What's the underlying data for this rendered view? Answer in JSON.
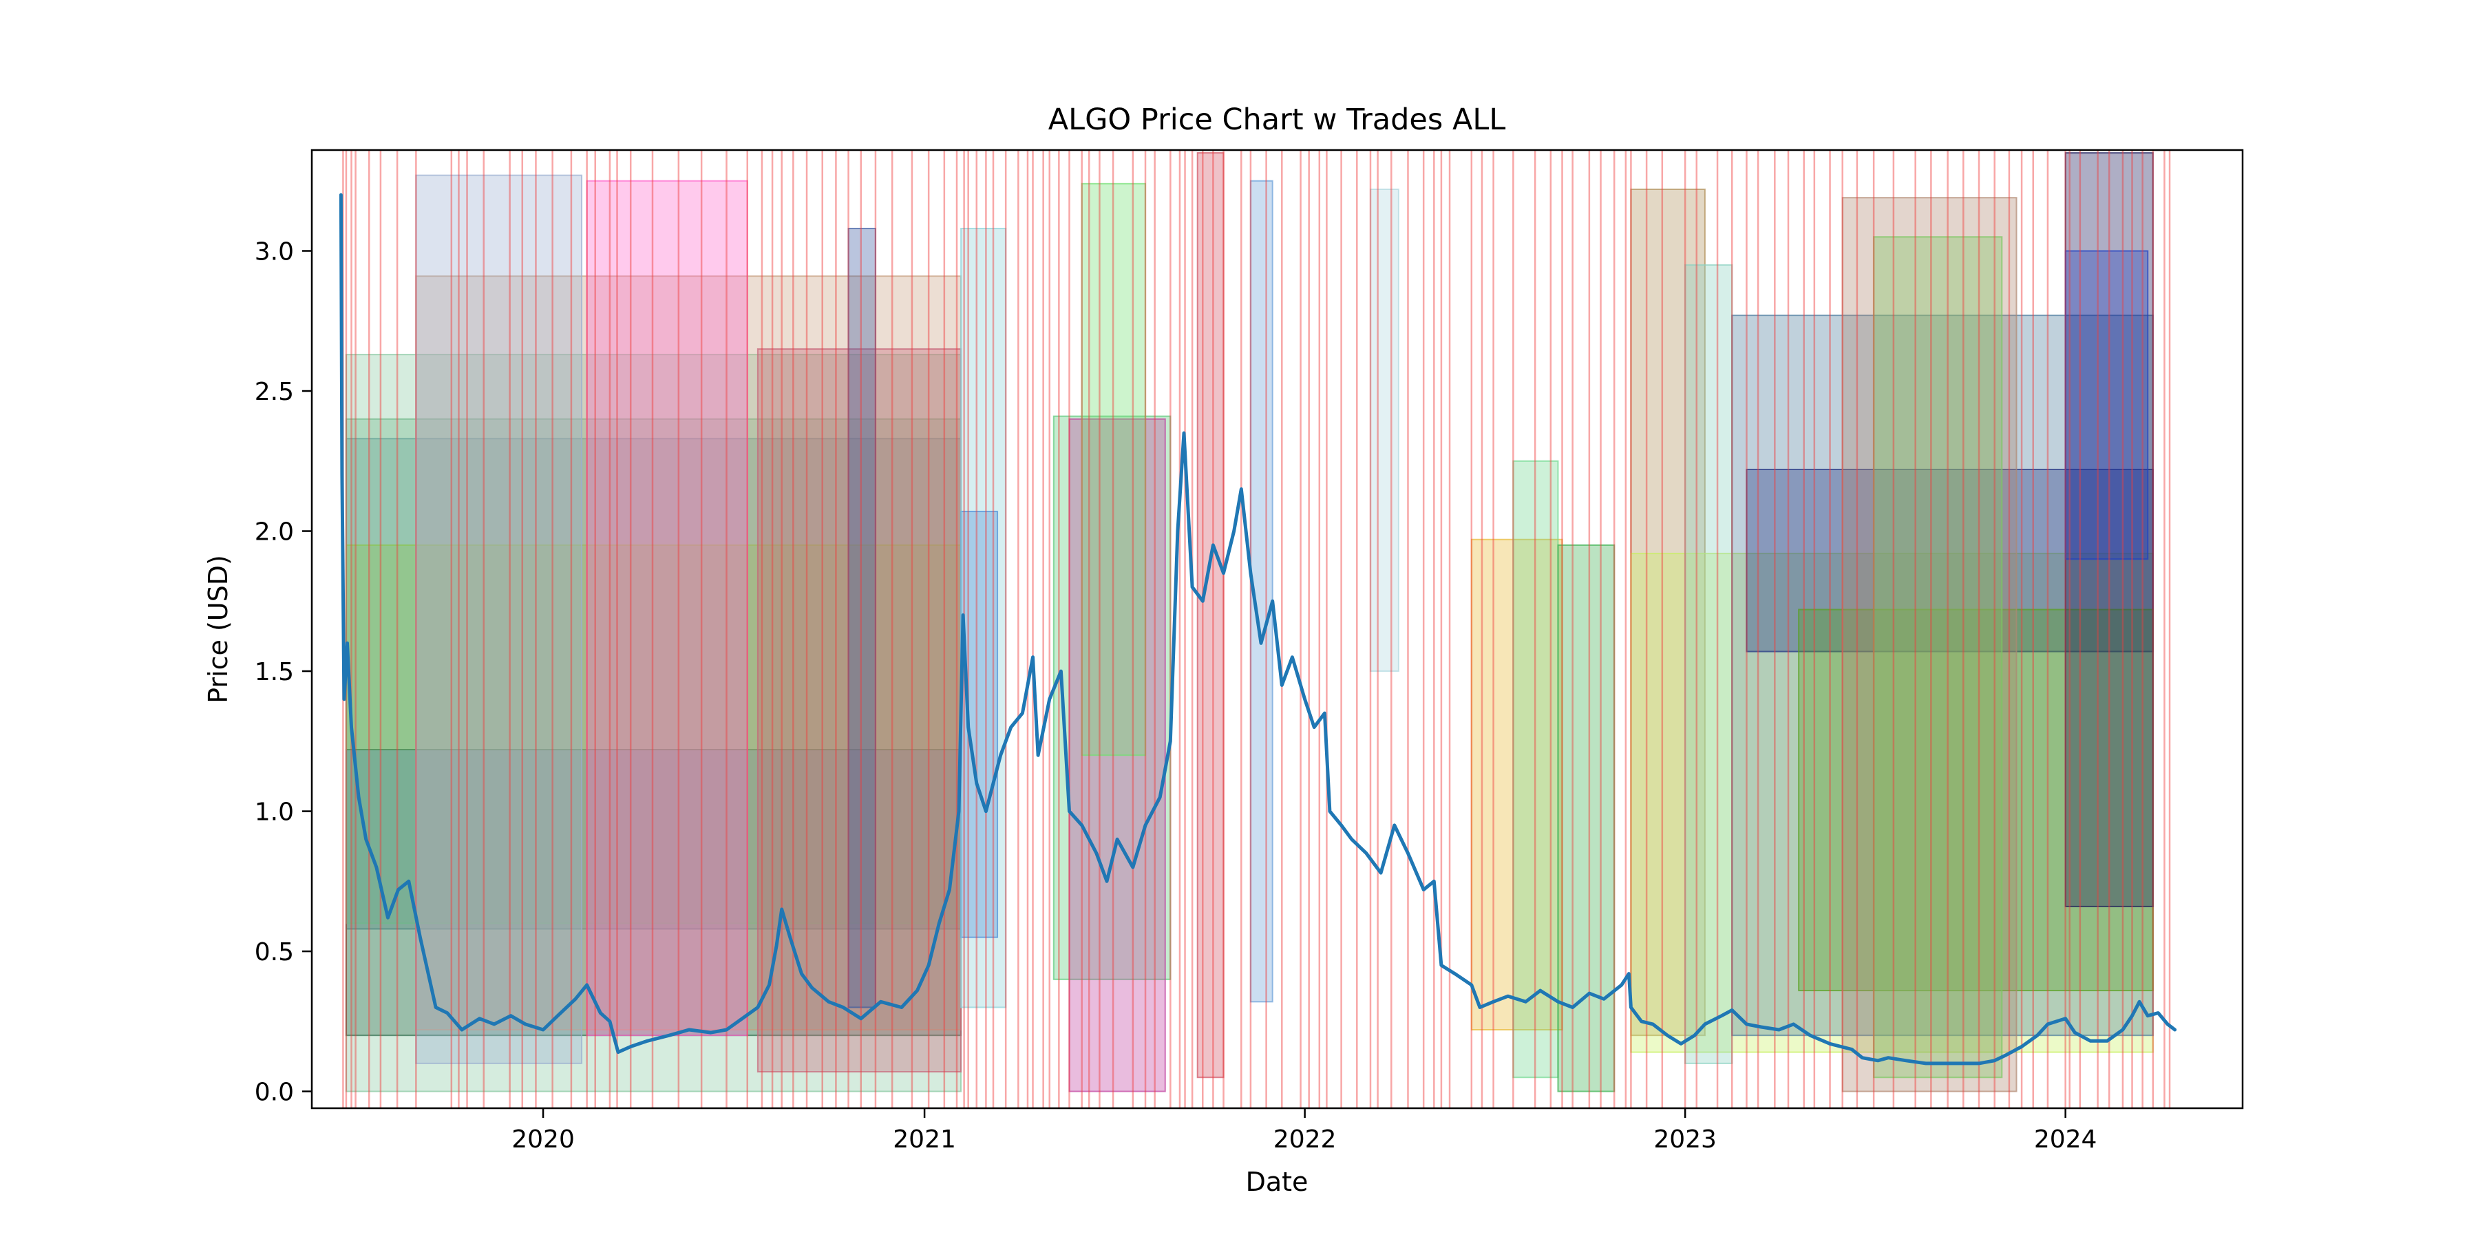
{
  "chart_data": {
    "type": "line",
    "title": "ALGO Price Chart w Trades ALL",
    "xlabel": "Date",
    "ylabel": "Price (USD)",
    "xlim": [
      "2019-05-24",
      "2024-06-19"
    ],
    "ylim": [
      -0.06,
      3.36
    ],
    "x_ticks": [
      "2020-01-01",
      "2021-01-01",
      "2022-01-01",
      "2023-01-01",
      "2024-01-01"
    ],
    "x_tick_labels": [
      "2020",
      "2021",
      "2022",
      "2023",
      "2024"
    ],
    "y_ticks": [
      0.0,
      0.5,
      1.0,
      1.5,
      2.0,
      2.5,
      3.0
    ],
    "y_tick_labels": [
      "0.0",
      "0.5",
      "1.0",
      "1.5",
      "2.0",
      "2.5",
      "3.0"
    ],
    "grid": false,
    "legend": "none",
    "line_color": "#1f77b4",
    "trade_line_color": "#f03c3c",
    "series": [
      {
        "values": [
          [
            "2019-06-21",
            3.2
          ],
          [
            "2019-06-22",
            2.2
          ],
          [
            "2019-06-24",
            1.4
          ],
          [
            "2019-06-27",
            1.6
          ],
          [
            "2019-07-01",
            1.3
          ],
          [
            "2019-07-08",
            1.05
          ],
          [
            "2019-07-15",
            0.9
          ],
          [
            "2019-07-25",
            0.8
          ],
          [
            "2019-08-05",
            0.62
          ],
          [
            "2019-08-15",
            0.72
          ],
          [
            "2019-08-25",
            0.75
          ],
          [
            "2019-09-05",
            0.55
          ],
          [
            "2019-09-20",
            0.3
          ],
          [
            "2019-10-01",
            0.28
          ],
          [
            "2019-10-15",
            0.22
          ],
          [
            "2019-11-01",
            0.26
          ],
          [
            "2019-11-15",
            0.24
          ],
          [
            "2019-12-01",
            0.27
          ],
          [
            "2019-12-15",
            0.24
          ],
          [
            "2020-01-01",
            0.22
          ],
          [
            "2020-01-15",
            0.27
          ],
          [
            "2020-02-01",
            0.33
          ],
          [
            "2020-02-12",
            0.38
          ],
          [
            "2020-02-25",
            0.28
          ],
          [
            "2020-03-05",
            0.25
          ],
          [
            "2020-03-13",
            0.14
          ],
          [
            "2020-03-25",
            0.16
          ],
          [
            "2020-04-10",
            0.18
          ],
          [
            "2020-05-01",
            0.2
          ],
          [
            "2020-05-20",
            0.22
          ],
          [
            "2020-06-10",
            0.21
          ],
          [
            "2020-06-25",
            0.22
          ],
          [
            "2020-07-10",
            0.26
          ],
          [
            "2020-07-25",
            0.3
          ],
          [
            "2020-08-05",
            0.38
          ],
          [
            "2020-08-12",
            0.52
          ],
          [
            "2020-08-17",
            0.65
          ],
          [
            "2020-08-25",
            0.55
          ],
          [
            "2020-09-05",
            0.42
          ],
          [
            "2020-09-15",
            0.37
          ],
          [
            "2020-10-01",
            0.32
          ],
          [
            "2020-10-15",
            0.3
          ],
          [
            "2020-11-01",
            0.26
          ],
          [
            "2020-11-20",
            0.32
          ],
          [
            "2020-12-10",
            0.3
          ],
          [
            "2020-12-25",
            0.36
          ],
          [
            "2021-01-05",
            0.45
          ],
          [
            "2021-01-15",
            0.6
          ],
          [
            "2021-01-25",
            0.72
          ],
          [
            "2021-02-03",
            1.0
          ],
          [
            "2021-02-07",
            1.7
          ],
          [
            "2021-02-12",
            1.3
          ],
          [
            "2021-02-20",
            1.1
          ],
          [
            "2021-03-01",
            1.0
          ],
          [
            "2021-03-15",
            1.2
          ],
          [
            "2021-03-25",
            1.3
          ],
          [
            "2021-04-05",
            1.35
          ],
          [
            "2021-04-15",
            1.55
          ],
          [
            "2021-04-20",
            1.2
          ],
          [
            "2021-05-01",
            1.4
          ],
          [
            "2021-05-12",
            1.5
          ],
          [
            "2021-05-20",
            1.0
          ],
          [
            "2021-06-01",
            0.95
          ],
          [
            "2021-06-15",
            0.85
          ],
          [
            "2021-06-25",
            0.75
          ],
          [
            "2021-07-05",
            0.9
          ],
          [
            "2021-07-20",
            0.8
          ],
          [
            "2021-08-01",
            0.95
          ],
          [
            "2021-08-15",
            1.05
          ],
          [
            "2021-08-25",
            1.25
          ],
          [
            "2021-09-01",
            2.0
          ],
          [
            "2021-09-07",
            2.35
          ],
          [
            "2021-09-15",
            1.8
          ],
          [
            "2021-09-25",
            1.75
          ],
          [
            "2021-10-05",
            1.95
          ],
          [
            "2021-10-15",
            1.85
          ],
          [
            "2021-10-25",
            2.0
          ],
          [
            "2021-11-01",
            2.15
          ],
          [
            "2021-11-10",
            1.85
          ],
          [
            "2021-11-20",
            1.6
          ],
          [
            "2021-12-01",
            1.75
          ],
          [
            "2021-12-10",
            1.45
          ],
          [
            "2021-12-20",
            1.55
          ],
          [
            "2022-01-01",
            1.4
          ],
          [
            "2022-01-10",
            1.3
          ],
          [
            "2022-01-20",
            1.35
          ],
          [
            "2022-01-25",
            1.0
          ],
          [
            "2022-02-05",
            0.95
          ],
          [
            "2022-02-15",
            0.9
          ],
          [
            "2022-03-01",
            0.85
          ],
          [
            "2022-03-15",
            0.78
          ],
          [
            "2022-03-28",
            0.95
          ],
          [
            "2022-04-10",
            0.85
          ],
          [
            "2022-04-25",
            0.72
          ],
          [
            "2022-05-05",
            0.75
          ],
          [
            "2022-05-12",
            0.45
          ],
          [
            "2022-05-25",
            0.42
          ],
          [
            "2022-06-10",
            0.38
          ],
          [
            "2022-06-18",
            0.3
          ],
          [
            "2022-07-01",
            0.32
          ],
          [
            "2022-07-15",
            0.34
          ],
          [
            "2022-08-01",
            0.32
          ],
          [
            "2022-08-15",
            0.36
          ],
          [
            "2022-09-01",
            0.32
          ],
          [
            "2022-09-15",
            0.3
          ],
          [
            "2022-10-01",
            0.35
          ],
          [
            "2022-10-15",
            0.33
          ],
          [
            "2022-11-01",
            0.38
          ],
          [
            "2022-11-08",
            0.42
          ],
          [
            "2022-11-10",
            0.3
          ],
          [
            "2022-11-20",
            0.25
          ],
          [
            "2022-12-01",
            0.24
          ],
          [
            "2022-12-15",
            0.2
          ],
          [
            "2022-12-28",
            0.17
          ],
          [
            "2023-01-10",
            0.2
          ],
          [
            "2023-01-20",
            0.24
          ],
          [
            "2023-02-05",
            0.27
          ],
          [
            "2023-02-15",
            0.29
          ],
          [
            "2023-03-01",
            0.24
          ],
          [
            "2023-03-15",
            0.23
          ],
          [
            "2023-04-01",
            0.22
          ],
          [
            "2023-04-15",
            0.24
          ],
          [
            "2023-05-01",
            0.2
          ],
          [
            "2023-05-20",
            0.17
          ],
          [
            "2023-06-10",
            0.15
          ],
          [
            "2023-06-20",
            0.12
          ],
          [
            "2023-07-05",
            0.11
          ],
          [
            "2023-07-15",
            0.12
          ],
          [
            "2023-08-01",
            0.11
          ],
          [
            "2023-08-20",
            0.1
          ],
          [
            "2023-09-10",
            0.1
          ],
          [
            "2023-09-25",
            0.1
          ],
          [
            "2023-10-10",
            0.1
          ],
          [
            "2023-10-25",
            0.11
          ],
          [
            "2023-11-05",
            0.13
          ],
          [
            "2023-11-20",
            0.16
          ],
          [
            "2023-12-05",
            0.2
          ],
          [
            "2023-12-15",
            0.24
          ],
          [
            "2024-01-01",
            0.26
          ],
          [
            "2024-01-10",
            0.21
          ],
          [
            "2024-01-25",
            0.18
          ],
          [
            "2024-02-10",
            0.18
          ],
          [
            "2024-02-25",
            0.22
          ],
          [
            "2024-03-05",
            0.27
          ],
          [
            "2024-03-12",
            0.32
          ],
          [
            "2024-03-20",
            0.27
          ],
          [
            "2024-03-30",
            0.28
          ],
          [
            "2024-04-08",
            0.24
          ],
          [
            "2024-04-15",
            0.22
          ]
        ]
      }
    ],
    "trade_boxes": [
      [
        "2019-06-26",
        "2021-02-05",
        0.58,
        2.33,
        "#4a7a9c"
      ],
      [
        "2019-06-26",
        "2021-02-05",
        0.0,
        2.63,
        "#86c8a0"
      ],
      [
        "2019-06-26",
        "2021-02-05",
        1.22,
        1.95,
        "#9acd32"
      ],
      [
        "2019-06-26",
        "2021-02-05",
        0.2,
        1.22,
        "#2e6b4a"
      ],
      [
        "2019-06-26",
        "2021-02-05",
        0.6,
        2.4,
        "#6fb88a"
      ],
      [
        "2019-09-01",
        "2021-02-05",
        0.22,
        2.91,
        "#c8a080"
      ],
      [
        "2019-09-01",
        "2020-02-07",
        0.1,
        3.27,
        "#9aaed0"
      ],
      [
        "2020-02-12",
        "2020-07-15",
        0.2,
        3.25,
        "#ff66cc"
      ],
      [
        "2020-07-25",
        "2021-02-05",
        0.07,
        2.65,
        "#c86478"
      ],
      [
        "2020-10-20",
        "2020-11-15",
        0.3,
        3.08,
        "#3a5aa0"
      ],
      [
        "2021-02-05",
        "2021-03-12",
        0.55,
        2.07,
        "#2a6ad8"
      ],
      [
        "2021-02-05",
        "2021-03-20",
        0.3,
        3.08,
        "#8ad2d8"
      ],
      [
        "2021-05-05",
        "2021-08-25",
        0.4,
        2.41,
        "#58c878"
      ],
      [
        "2021-05-20",
        "2021-08-20",
        0.0,
        2.4,
        "#c040a0"
      ],
      [
        "2021-06-01",
        "2021-08-01",
        1.2,
        3.24,
        "#70e070"
      ],
      [
        "2021-09-20",
        "2021-10-15",
        0.05,
        3.35,
        "#d05060"
      ],
      [
        "2021-11-10",
        "2021-12-01",
        0.32,
        3.25,
        "#6aa0d8"
      ],
      [
        "2022-03-05",
        "2022-04-01",
        1.5,
        3.22,
        "#b0d8e0"
      ],
      [
        "2022-06-10",
        "2022-09-05",
        0.22,
        1.97,
        "#e8b830"
      ],
      [
        "2022-07-20",
        "2022-09-01",
        0.05,
        2.25,
        "#70d890"
      ],
      [
        "2022-09-01",
        "2022-10-25",
        0.0,
        1.95,
        "#3cb050"
      ],
      [
        "2022-11-10",
        "2023-01-20",
        0.2,
        3.22,
        "#b09058"
      ],
      [
        "2022-11-10",
        "2024-03-25",
        0.14,
        1.92,
        "#c8f060"
      ],
      [
        "2023-01-01",
        "2023-02-15",
        0.1,
        2.95,
        "#8ad2c0"
      ],
      [
        "2023-02-15",
        "2024-03-25",
        0.2,
        2.77,
        "#4a7a9c"
      ],
      [
        "2023-03-01",
        "2024-03-25",
        1.57,
        2.22,
        "#203080"
      ],
      [
        "2023-04-20",
        "2024-03-25",
        0.36,
        1.72,
        "#58a020"
      ],
      [
        "2023-06-01",
        "2023-11-15",
        0.0,
        3.19,
        "#b08870"
      ],
      [
        "2023-07-01",
        "2023-11-01",
        0.05,
        3.05,
        "#7ac860"
      ],
      [
        "2024-01-01",
        "2024-03-25",
        0.66,
        3.35,
        "#181858"
      ],
      [
        "2024-01-01",
        "2024-03-20",
        1.9,
        3.0,
        "#2040c0"
      ]
    ],
    "trade_markers": [
      "2019-06-23",
      "2019-06-26",
      "2019-07-01",
      "2019-07-05",
      "2019-07-18",
      "2019-07-29",
      "2019-08-14",
      "2019-09-01",
      "2019-10-05",
      "2019-10-12",
      "2019-10-20",
      "2019-11-05",
      "2019-11-30",
      "2019-12-12",
      "2019-12-25",
      "2020-01-10",
      "2020-01-28",
      "2020-02-12",
      "2020-02-20",
      "2020-03-05",
      "2020-03-12",
      "2020-03-25",
      "2020-04-15",
      "2020-05-10",
      "2020-06-01",
      "2020-06-25",
      "2020-07-15",
      "2020-07-29",
      "2020-08-08",
      "2020-08-17",
      "2020-08-28",
      "2020-09-10",
      "2020-09-25",
      "2020-10-08",
      "2020-10-20",
      "2020-11-01",
      "2020-11-15",
      "2020-12-01",
      "2020-12-20",
      "2021-01-05",
      "2021-01-20",
      "2021-02-01",
      "2021-02-08",
      "2021-02-12",
      "2021-02-20",
      "2021-03-01",
      "2021-03-08",
      "2021-03-20",
      "2021-04-01",
      "2021-04-10",
      "2021-04-15",
      "2021-04-25",
      "2021-05-01",
      "2021-05-10",
      "2021-05-20",
      "2021-06-01",
      "2021-06-08",
      "2021-06-18",
      "2021-07-01",
      "2021-07-20",
      "2021-08-01",
      "2021-08-10",
      "2021-08-25",
      "2021-09-03",
      "2021-09-08",
      "2021-09-15",
      "2021-09-25",
      "2021-10-05",
      "2021-10-15",
      "2021-11-01",
      "2021-11-10",
      "2021-11-25",
      "2021-12-10",
      "2021-12-28",
      "2022-01-05",
      "2022-01-15",
      "2022-01-22",
      "2022-02-05",
      "2022-02-20",
      "2022-03-05",
      "2022-03-12",
      "2022-03-25",
      "2022-04-10",
      "2022-04-25",
      "2022-05-05",
      "2022-05-12",
      "2022-05-20",
      "2022-06-10",
      "2022-06-20",
      "2022-07-01",
      "2022-07-20",
      "2022-08-10",
      "2022-08-25",
      "2022-09-05",
      "2022-09-15",
      "2022-10-01",
      "2022-10-12",
      "2022-10-25",
      "2022-11-05",
      "2022-11-10",
      "2022-11-25",
      "2022-12-10",
      "2023-01-01",
      "2023-01-12",
      "2023-02-01",
      "2023-02-15",
      "2023-03-01",
      "2023-03-12",
      "2023-03-28",
      "2023-04-10",
      "2023-04-25",
      "2023-05-05",
      "2023-05-20",
      "2023-06-01",
      "2023-06-15",
      "2023-07-01",
      "2023-07-20",
      "2023-08-10",
      "2023-08-25",
      "2023-09-10",
      "2023-09-25",
      "2023-10-10",
      "2023-10-25",
      "2023-11-08",
      "2023-11-20",
      "2023-12-01",
      "2023-12-15",
      "2024-01-01",
      "2024-01-05",
      "2024-01-15",
      "2024-02-01",
      "2024-02-12",
      "2024-02-25",
      "2024-03-05",
      "2024-03-15",
      "2024-03-25",
      "2024-04-05",
      "2024-04-10"
    ]
  }
}
